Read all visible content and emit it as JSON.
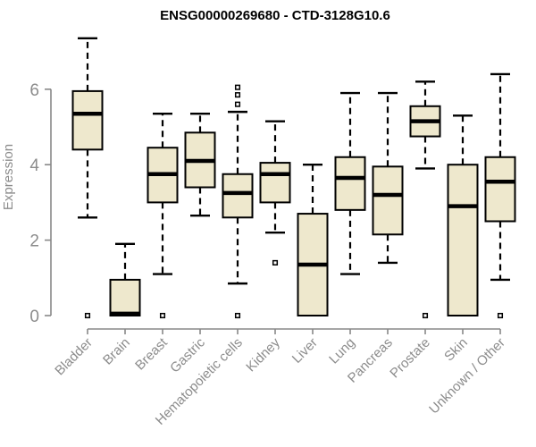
{
  "chart_data": {
    "type": "boxplot",
    "title": "ENSG00000269680 - CTD-3128G10.6",
    "ylabel": "Expression",
    "xlabel": "",
    "ylim": [
      0,
      7.5
    ],
    "yticks": [
      0,
      2,
      4,
      6
    ],
    "grid": false,
    "legend": null,
    "box_fill_color": "#eee8cd",
    "box_border_color": "#000000",
    "axis_color": "#888888",
    "label_color": "#8c8c8c",
    "categories": [
      "Bladder",
      "Brain",
      "Breast",
      "Gastric",
      "Hematopoietic cells",
      "Kidney",
      "Liver",
      "Lung",
      "Pancreas",
      "Prostate",
      "Skin",
      "Unknown / Other"
    ],
    "series": [
      {
        "category": "Bladder",
        "low": 2.6,
        "q1": 4.4,
        "median": 5.35,
        "q3": 5.95,
        "high": 7.35,
        "outliers": [
          0
        ]
      },
      {
        "category": "Brain",
        "low": 0,
        "q1": 0,
        "median": 0.05,
        "q3": 0.95,
        "high": 1.9,
        "outliers": []
      },
      {
        "category": "Breast",
        "low": 1.1,
        "q1": 3.0,
        "median": 3.75,
        "q3": 4.45,
        "high": 5.35,
        "outliers": [
          0
        ]
      },
      {
        "category": "Gastric",
        "low": 2.65,
        "q1": 3.4,
        "median": 4.1,
        "q3": 4.85,
        "high": 5.35,
        "outliers": []
      },
      {
        "category": "Hematopoietic cells",
        "low": 0.85,
        "q1": 2.6,
        "median": 3.25,
        "q3": 3.75,
        "high": 5.4,
        "outliers": [
          6.05,
          5.85,
          5.6,
          0
        ]
      },
      {
        "category": "Kidney",
        "low": 2.2,
        "q1": 3.0,
        "median": 3.75,
        "q3": 4.05,
        "high": 5.15,
        "outliers": [
          1.4
        ]
      },
      {
        "category": "Liver",
        "low": 0,
        "q1": 0,
        "median": 1.35,
        "q3": 2.7,
        "high": 4.0,
        "outliers": []
      },
      {
        "category": "Lung",
        "low": 1.1,
        "q1": 2.8,
        "median": 3.65,
        "q3": 4.2,
        "high": 5.9,
        "outliers": []
      },
      {
        "category": "Pancreas",
        "low": 1.4,
        "q1": 2.15,
        "median": 3.2,
        "q3": 3.95,
        "high": 5.9,
        "outliers": []
      },
      {
        "category": "Prostate",
        "low": 3.9,
        "q1": 4.75,
        "median": 5.15,
        "q3": 5.55,
        "high": 6.2,
        "outliers": [
          0
        ]
      },
      {
        "category": "Skin",
        "low": 0,
        "q1": 0,
        "median": 2.9,
        "q3": 4.0,
        "high": 5.3,
        "outliers": []
      },
      {
        "category": "Unknown / Other",
        "low": 0.95,
        "q1": 2.5,
        "median": 3.55,
        "q3": 4.2,
        "high": 6.4,
        "outliers": [
          0
        ]
      }
    ]
  }
}
